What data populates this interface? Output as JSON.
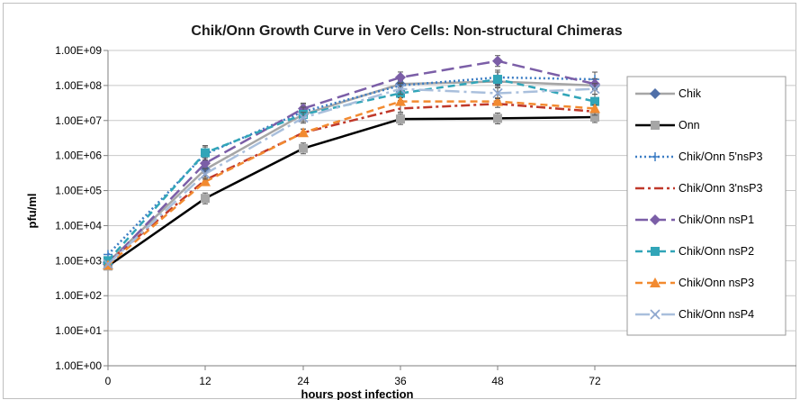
{
  "chart_data": {
    "type": "line",
    "title": "Chik/Onn Growth Curve in Vero Cells: Non-structural Chimeras",
    "xlabel": "hours post infection",
    "ylabel": "pfu/ml",
    "y_scale": "log10",
    "ylim": [
      1,
      1000000000
    ],
    "y_tick_labels": [
      "1.00E+00",
      "1.00E+01",
      "1.00E+02",
      "1.00E+03",
      "1.00E+04",
      "1.00E+05",
      "1.00E+06",
      "1.00E+07",
      "1.00E+08",
      "1.00E+09"
    ],
    "categories": [
      "0",
      "12",
      "24",
      "36",
      "48",
      "72"
    ],
    "grid": "horizontal major gridlines",
    "legend_position": "right",
    "error_bars": true,
    "series": [
      {
        "name": "Chik",
        "values": [
          900,
          400000,
          15000000,
          110000000,
          130000000,
          100000000
        ],
        "color": "#a6a6a6",
        "marker": "diamond",
        "marker_color": "#4f6fa8",
        "dash": "solid"
      },
      {
        "name": "Onn",
        "values": [
          700,
          60000,
          1600000,
          11000000,
          11500000,
          12500000
        ],
        "color": "#000000",
        "marker": "square",
        "marker_color": "#a6a6a6",
        "dash": "solid"
      },
      {
        "name": "Chik/Onn 5'nsP3",
        "values": [
          1500,
          1100000,
          18000000,
          100000000,
          170000000,
          150000000
        ],
        "color": "#3c7dc4",
        "marker": "plus",
        "marker_color": "#3c7dc4",
        "dash": "dotted"
      },
      {
        "name": "Chik/Onn 3'nsP3",
        "values": [
          900,
          200000,
          4500000,
          22000000,
          30000000,
          18000000
        ],
        "color": "#c0392b",
        "marker": "none",
        "marker_color": "#c0392b",
        "dash": "dashdot"
      },
      {
        "name": "Chik/Onn nsP1",
        "values": [
          800,
          600000,
          22000000,
          170000000,
          500000000,
          110000000
        ],
        "color": "#7b5ea7",
        "marker": "diamond",
        "marker_color": "#7b5ea7",
        "dash": "longdash"
      },
      {
        "name": "Chik/Onn nsP2",
        "values": [
          1000,
          1200000,
          15000000,
          60000000,
          150000000,
          35000000
        ],
        "color": "#31a5b8",
        "marker": "square",
        "marker_color": "#31a5b8",
        "dash": "dash"
      },
      {
        "name": "Chik/Onn nsP3",
        "values": [
          750,
          180000,
          4500000,
          35000000,
          35000000,
          22000000
        ],
        "color": "#f28a30",
        "marker": "triangle",
        "marker_color": "#f28a30",
        "dash": "dash"
      },
      {
        "name": "Chik/Onn nsP4",
        "values": [
          800,
          300000,
          12000000,
          80000000,
          60000000,
          80000000
        ],
        "color": "#a9bfdc",
        "marker": "x",
        "marker_color": "#8fa7cf",
        "dash": "longdashdot"
      }
    ]
  }
}
